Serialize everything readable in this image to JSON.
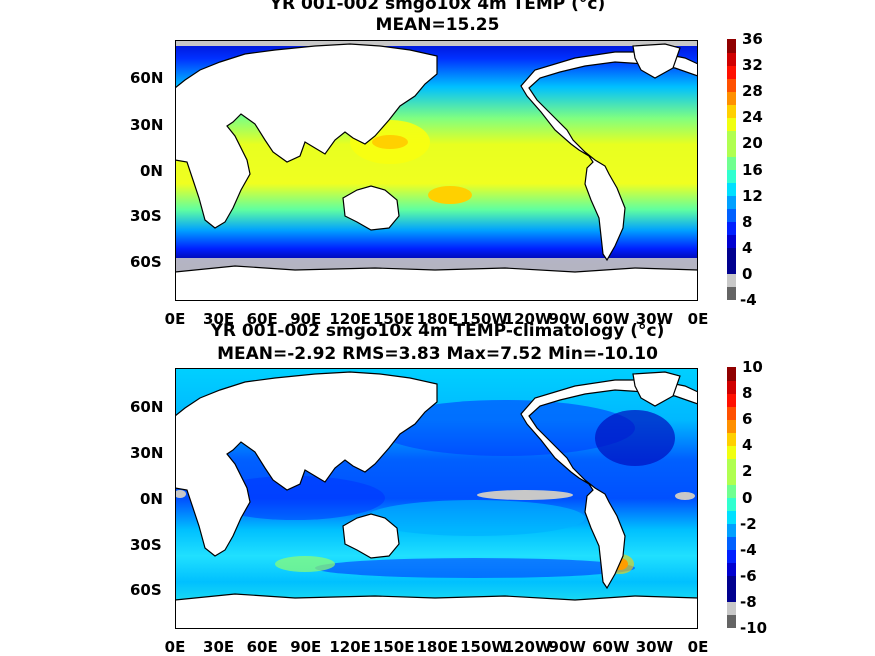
{
  "panels": [
    {
      "title_line1": "YR 001-002 smgo10x 4m TEMP (°c)",
      "title_line2": "MEAN=15.25",
      "colorbar_ticks": [
        "36",
        "32",
        "28",
        "24",
        "20",
        "16",
        "12",
        "8",
        "4",
        "0",
        "-4"
      ],
      "colorbar_range": [
        -4,
        36
      ],
      "colorbar_step": 2
    },
    {
      "title_line1": "YR 001-002 smgo10x 4m TEMP-climatology (°c)",
      "title_line2": "MEAN=-2.92   RMS=3.83   Max=7.52   Min=-10.10",
      "colorbar_ticks": [
        "10",
        "8",
        "6",
        "4",
        "2",
        "0",
        "-2",
        "-4",
        "-6",
        "-8",
        "-10"
      ],
      "colorbar_range": [
        -10,
        10
      ],
      "colorbar_step": 1
    }
  ],
  "lat_labels": [
    "60N",
    "30N",
    "0N",
    "30S",
    "60S"
  ],
  "lon_labels": [
    "0E",
    "30E",
    "60E",
    "90E",
    "120E",
    "150E",
    "180E",
    "150W",
    "120W",
    "90W",
    "60W",
    "30W",
    "0E"
  ],
  "colormap": [
    "#00008f",
    "#0000d0",
    "#0020ff",
    "#0060ff",
    "#00a0ff",
    "#00e0ff",
    "#30ffd0",
    "#70ff90",
    "#b0ff50",
    "#f0ff10",
    "#ffd000",
    "#ff9000",
    "#ff5000",
    "#ff1000",
    "#d00000",
    "#900000"
  ],
  "colors": {
    "land": "#ffffff",
    "ice": "#c8c8c8",
    "neg_box": "#646464",
    "coast": "#000000"
  }
}
